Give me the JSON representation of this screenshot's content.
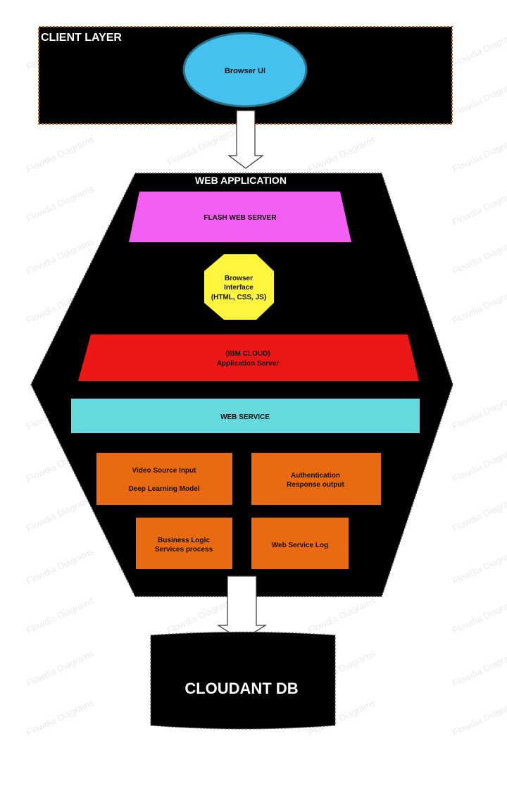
{
  "client_layer": {
    "title": "CLIENT LAYER",
    "browser_ui": "Browser UI"
  },
  "web_application": {
    "title": "WEB APPLICATION",
    "flash_web_server": "FLASH WEB SERVER",
    "browser_interface": [
      "Browser",
      "Interface",
      "(HTML, CSS, JS)"
    ],
    "app_server": [
      "(IBM CLOUD)",
      "Application Server"
    ],
    "web_service": "WEB SERVICE",
    "video_source": [
      "Video Source Input",
      "Deep Learning Model"
    ],
    "authentication": [
      "Authentication",
      "Response output"
    ],
    "business_logic": [
      "Business Logic",
      "Services process"
    ],
    "web_service_log": "Web Service Log"
  },
  "database": {
    "title": "CLOUDANT DB"
  },
  "watermark": "Flowdia Diagrams",
  "colors": {
    "client_bg": "#000000",
    "client_border": "#b5651d",
    "browser_ui_fill": "#45c1ee",
    "flash_server_fill": "#f25ff0",
    "browser_interface_fill": "#fef53c",
    "app_server_fill": "#ee1717",
    "web_service_fill": "#64d9de",
    "module_fill": "#ea6a12"
  }
}
